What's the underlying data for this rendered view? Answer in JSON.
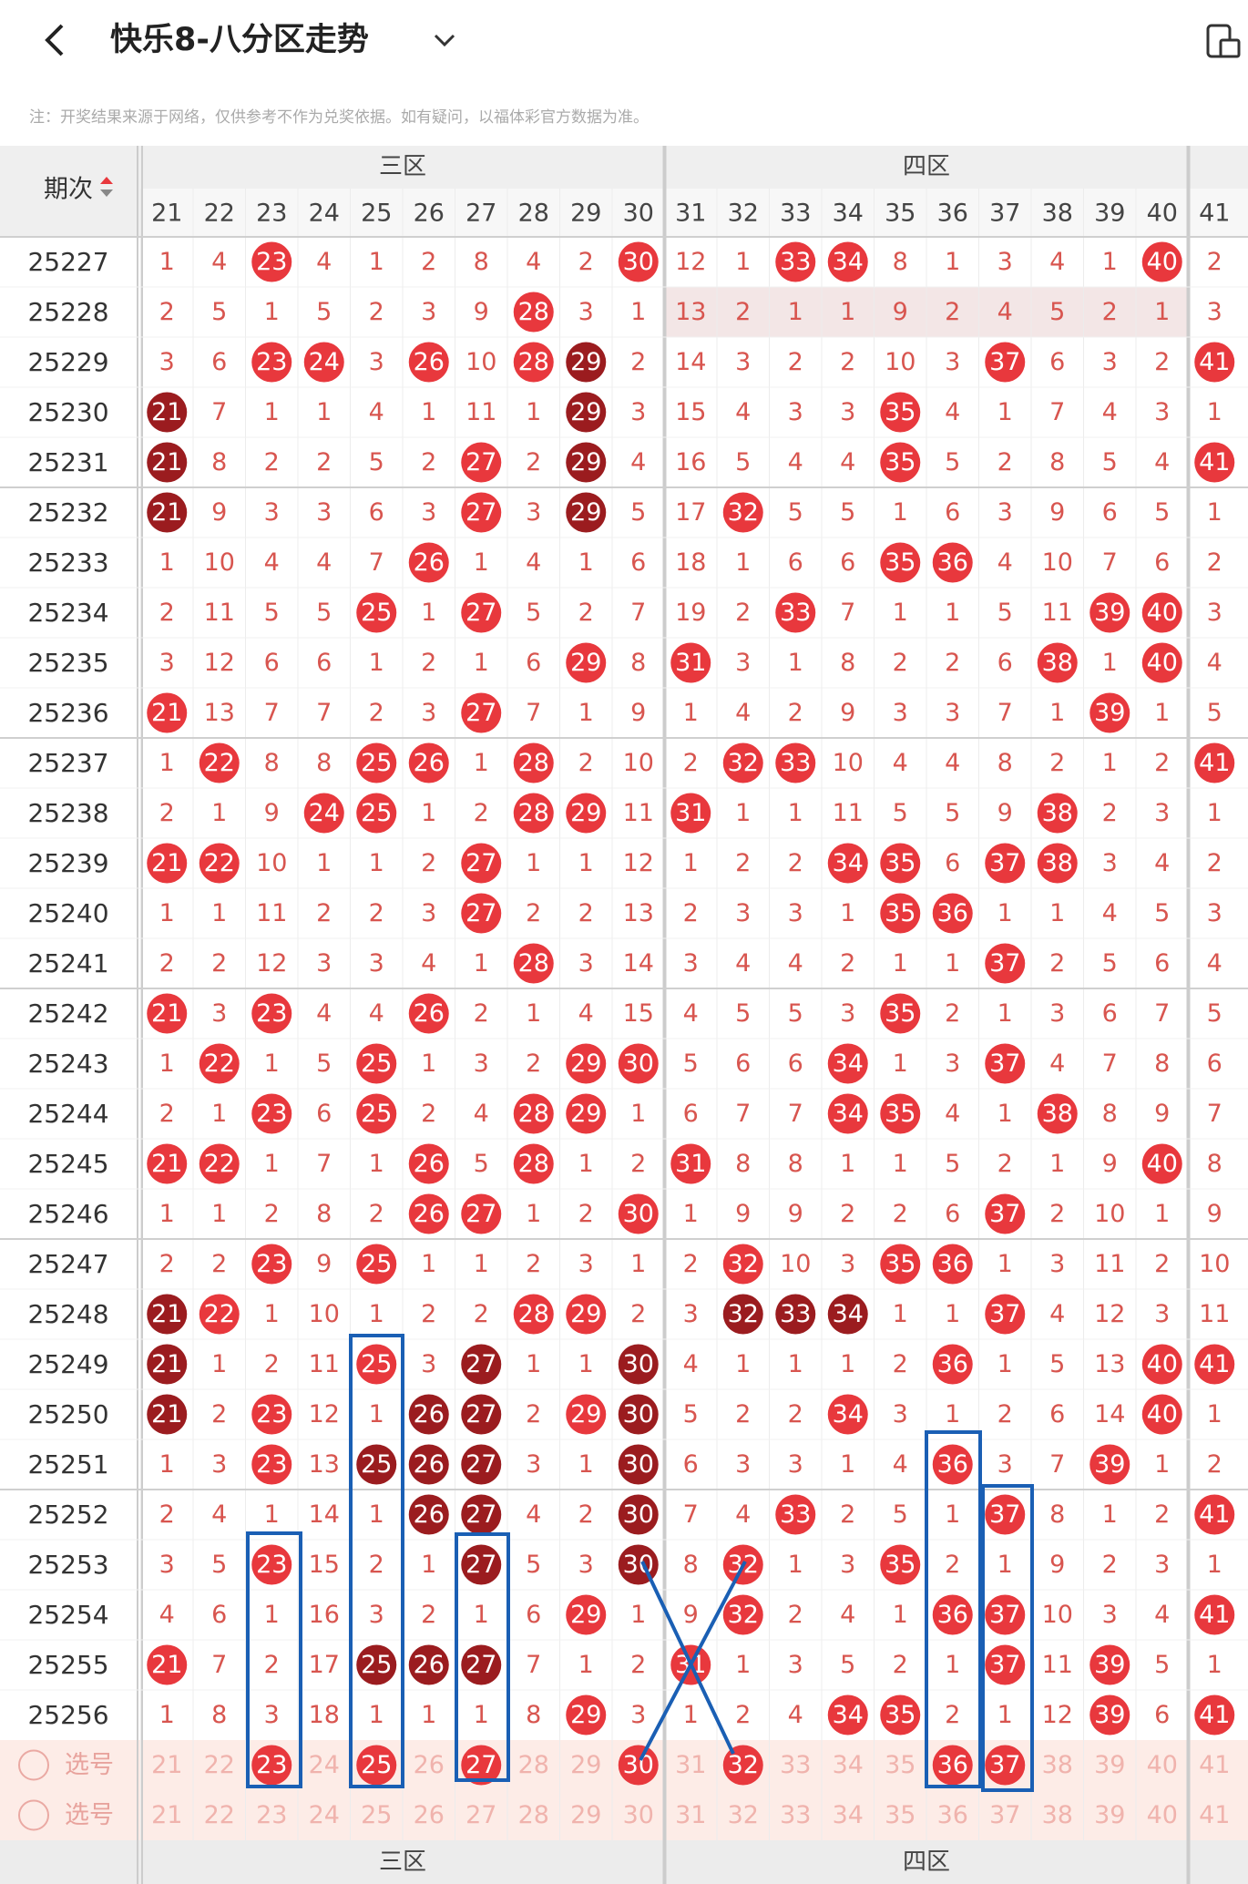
{
  "header": {
    "title": "快乐8-八分区走势",
    "note": "注：开奖结果来源于网络，仅供参考不作为兑奖依据。如有疑问，以福体彩官方数据为准。"
  },
  "table": {
    "issue_label": "期次",
    "zones": [
      {
        "name": "三区",
        "columns": [
          21,
          22,
          23,
          24,
          25,
          26,
          27,
          28,
          29,
          30
        ]
      },
      {
        "name": "四区",
        "columns": [
          31,
          32,
          33,
          34,
          35,
          36,
          37,
          38,
          39,
          40
        ]
      },
      {
        "columns": [
          41
        ]
      }
    ],
    "rows": [
      {
        "issue": "25227",
        "cells": [
          1,
          4,
          23,
          4,
          1,
          2,
          8,
          4,
          2,
          30,
          12,
          1,
          33,
          34,
          8,
          1,
          3,
          4,
          1,
          40,
          2
        ]
      },
      {
        "issue": "25228",
        "cells": [
          2,
          5,
          1,
          5,
          2,
          3,
          9,
          28,
          3,
          1,
          13,
          2,
          1,
          1,
          9,
          2,
          4,
          5,
          2,
          1,
          3
        ]
      },
      {
        "issue": "25229",
        "cells": [
          3,
          6,
          23,
          24,
          3,
          26,
          10,
          28,
          29,
          2,
          14,
          3,
          2,
          2,
          10,
          3,
          37,
          6,
          3,
          2,
          41
        ],
        "dark": [
          29
        ]
      },
      {
        "issue": "25230",
        "cells": [
          21,
          7,
          1,
          1,
          4,
          1,
          11,
          1,
          29,
          3,
          15,
          4,
          3,
          3,
          35,
          4,
          1,
          7,
          4,
          3,
          1
        ],
        "dark": [
          21,
          29
        ]
      },
      {
        "issue": "25231",
        "cells": [
          21,
          8,
          2,
          2,
          5,
          2,
          27,
          2,
          29,
          4,
          16,
          5,
          4,
          4,
          35,
          5,
          2,
          8,
          5,
          4,
          41
        ],
        "dark": [
          21,
          29
        ]
      },
      {
        "issue": "25232",
        "cells": [
          21,
          9,
          3,
          3,
          6,
          3,
          27,
          3,
          29,
          5,
          17,
          32,
          5,
          5,
          1,
          6,
          3,
          9,
          6,
          5,
          1
        ],
        "dark": [
          21,
          29
        ]
      },
      {
        "issue": "25233",
        "cells": [
          1,
          10,
          4,
          4,
          7,
          26,
          1,
          4,
          1,
          6,
          18,
          1,
          6,
          6,
          35,
          36,
          4,
          10,
          7,
          6,
          2
        ]
      },
      {
        "issue": "25234",
        "cells": [
          2,
          11,
          5,
          5,
          25,
          1,
          27,
          5,
          2,
          7,
          19,
          2,
          33,
          7,
          1,
          1,
          5,
          11,
          39,
          40,
          3
        ]
      },
      {
        "issue": "25235",
        "cells": [
          3,
          12,
          6,
          6,
          1,
          2,
          1,
          6,
          29,
          8,
          31,
          3,
          1,
          8,
          2,
          2,
          6,
          38,
          1,
          40,
          4
        ]
      },
      {
        "issue": "25236",
        "cells": [
          21,
          13,
          7,
          7,
          2,
          3,
          27,
          7,
          1,
          9,
          1,
          4,
          2,
          9,
          3,
          3,
          7,
          1,
          39,
          1,
          5
        ]
      },
      {
        "issue": "25237",
        "cells": [
          1,
          22,
          8,
          8,
          25,
          26,
          1,
          28,
          2,
          10,
          2,
          32,
          33,
          10,
          4,
          4,
          8,
          2,
          1,
          2,
          41
        ]
      },
      {
        "issue": "25238",
        "cells": [
          2,
          1,
          9,
          24,
          25,
          1,
          2,
          28,
          29,
          11,
          31,
          1,
          1,
          11,
          5,
          5,
          9,
          38,
          2,
          3,
          1
        ]
      },
      {
        "issue": "25239",
        "cells": [
          21,
          22,
          10,
          1,
          1,
          2,
          27,
          1,
          1,
          12,
          1,
          2,
          2,
          34,
          35,
          6,
          37,
          38,
          3,
          4,
          2
        ]
      },
      {
        "issue": "25240",
        "cells": [
          1,
          1,
          11,
          2,
          2,
          3,
          27,
          2,
          2,
          13,
          2,
          3,
          3,
          1,
          35,
          36,
          1,
          1,
          4,
          5,
          3
        ]
      },
      {
        "issue": "25241",
        "cells": [
          2,
          2,
          12,
          3,
          3,
          4,
          1,
          28,
          3,
          14,
          3,
          4,
          4,
          2,
          1,
          1,
          37,
          2,
          5,
          6,
          4
        ]
      },
      {
        "issue": "25242",
        "cells": [
          21,
          3,
          23,
          4,
          4,
          26,
          2,
          1,
          4,
          15,
          4,
          5,
          5,
          3,
          35,
          2,
          1,
          3,
          6,
          7,
          5
        ]
      },
      {
        "issue": "25243",
        "cells": [
          1,
          22,
          1,
          5,
          25,
          1,
          3,
          2,
          29,
          30,
          5,
          6,
          6,
          34,
          1,
          3,
          37,
          4,
          7,
          8,
          6
        ]
      },
      {
        "issue": "25244",
        "cells": [
          2,
          1,
          23,
          6,
          25,
          2,
          4,
          28,
          29,
          1,
          6,
          7,
          7,
          34,
          35,
          4,
          1,
          38,
          8,
          9,
          7
        ]
      },
      {
        "issue": "25245",
        "cells": [
          21,
          22,
          1,
          7,
          1,
          26,
          5,
          28,
          1,
          2,
          31,
          8,
          8,
          1,
          1,
          5,
          2,
          1,
          9,
          40,
          8
        ]
      },
      {
        "issue": "25246",
        "cells": [
          1,
          1,
          2,
          8,
          2,
          26,
          27,
          1,
          2,
          30,
          1,
          9,
          9,
          2,
          2,
          6,
          37,
          2,
          10,
          1,
          9
        ]
      },
      {
        "issue": "25247",
        "cells": [
          2,
          2,
          23,
          9,
          25,
          1,
          1,
          2,
          3,
          1,
          2,
          32,
          10,
          3,
          35,
          36,
          1,
          3,
          11,
          2,
          10
        ]
      },
      {
        "issue": "25248",
        "cells": [
          21,
          22,
          1,
          10,
          1,
          2,
          2,
          28,
          29,
          2,
          3,
          32,
          33,
          34,
          1,
          1,
          37,
          4,
          12,
          3,
          11
        ],
        "dark": [
          21,
          32,
          33,
          34
        ]
      },
      {
        "issue": "25249",
        "cells": [
          21,
          1,
          2,
          11,
          25,
          3,
          27,
          1,
          1,
          30,
          4,
          1,
          1,
          1,
          2,
          36,
          1,
          5,
          13,
          40,
          41
        ],
        "dark": [
          21,
          27,
          30
        ]
      },
      {
        "issue": "25250",
        "cells": [
          21,
          2,
          23,
          12,
          1,
          26,
          27,
          2,
          29,
          30,
          5,
          2,
          2,
          34,
          3,
          1,
          2,
          6,
          14,
          40,
          1
        ],
        "dark": [
          21,
          26,
          27,
          30
        ]
      },
      {
        "issue": "25251",
        "cells": [
          1,
          3,
          23,
          13,
          25,
          26,
          27,
          3,
          1,
          30,
          6,
          3,
          3,
          1,
          4,
          36,
          3,
          7,
          39,
          1,
          2
        ],
        "dark": [
          25,
          26,
          27,
          30
        ]
      },
      {
        "issue": "25252",
        "cells": [
          2,
          4,
          1,
          14,
          1,
          26,
          27,
          4,
          2,
          30,
          7,
          4,
          33,
          2,
          5,
          1,
          37,
          8,
          1,
          2,
          41
        ],
        "dark": [
          26,
          27,
          30
        ]
      },
      {
        "issue": "25253",
        "cells": [
          3,
          5,
          23,
          15,
          2,
          1,
          27,
          5,
          3,
          30,
          8,
          32,
          1,
          3,
          35,
          2,
          1,
          9,
          2,
          3,
          1
        ],
        "dark": [
          27,
          30
        ]
      },
      {
        "issue": "25254",
        "cells": [
          4,
          6,
          1,
          16,
          3,
          2,
          1,
          6,
          29,
          1,
          9,
          32,
          2,
          4,
          1,
          36,
          37,
          10,
          3,
          4,
          41
        ]
      },
      {
        "issue": "25255",
        "cells": [
          21,
          7,
          2,
          17,
          25,
          26,
          27,
          7,
          1,
          2,
          31,
          1,
          3,
          5,
          2,
          1,
          37,
          11,
          39,
          5,
          1
        ],
        "dark": [
          25,
          26,
          27
        ]
      },
      {
        "issue": "25256",
        "cells": [
          1,
          8,
          3,
          18,
          1,
          1,
          1,
          8,
          29,
          3,
          1,
          2,
          4,
          34,
          35,
          2,
          1,
          12,
          39,
          6,
          41
        ]
      }
    ],
    "pick_rows": [
      {
        "label": "选号",
        "picked": [
          23,
          25,
          27,
          30,
          32,
          36,
          37
        ]
      },
      {
        "label": "选号"
      }
    ]
  }
}
